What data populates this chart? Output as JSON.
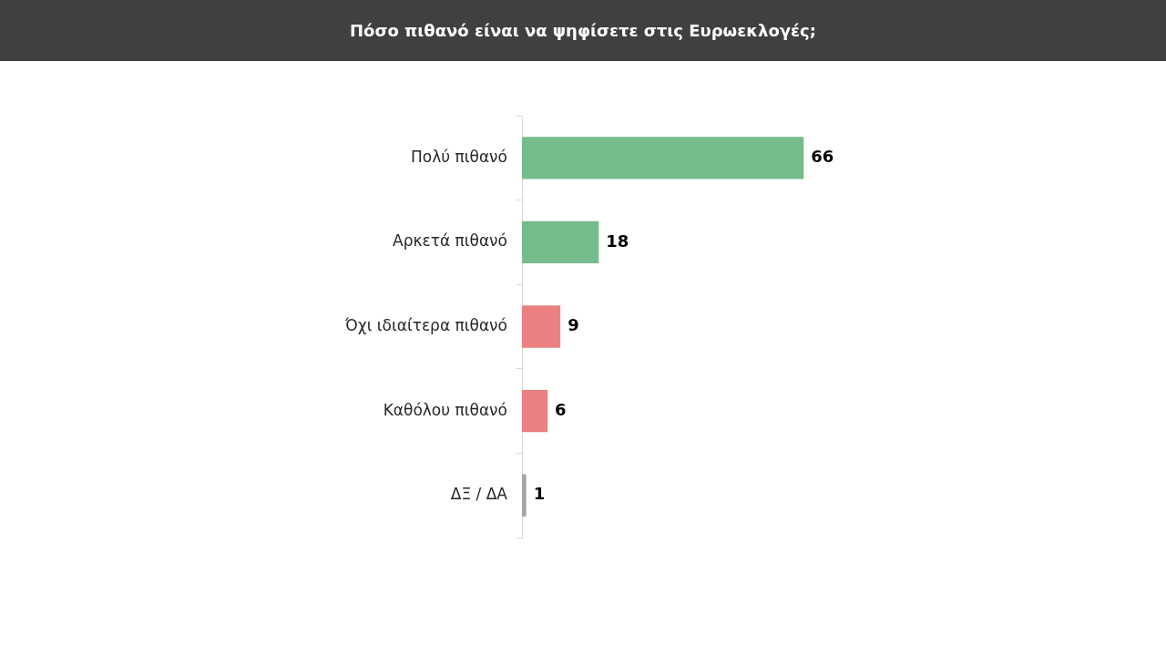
{
  "chart_data": {
    "type": "bar",
    "orientation": "horizontal",
    "title": "Πόσο πιθανό είναι να ψηφίσετε στις Ευρωεκλογές;",
    "categories": [
      "Πολύ πιθανό",
      "Αρκετά πιθανό",
      "Όχι ιδιαίτερα πιθανό",
      "Καθόλου πιθανό",
      "ΔΞ / ΔΑ"
    ],
    "values": [
      66,
      18,
      9,
      6,
      1
    ],
    "colors": [
      "#76bb8b",
      "#76bb8b",
      "#ec7f7f",
      "#ec7f7f",
      "#a5a5a5"
    ],
    "data_labels": true
  }
}
